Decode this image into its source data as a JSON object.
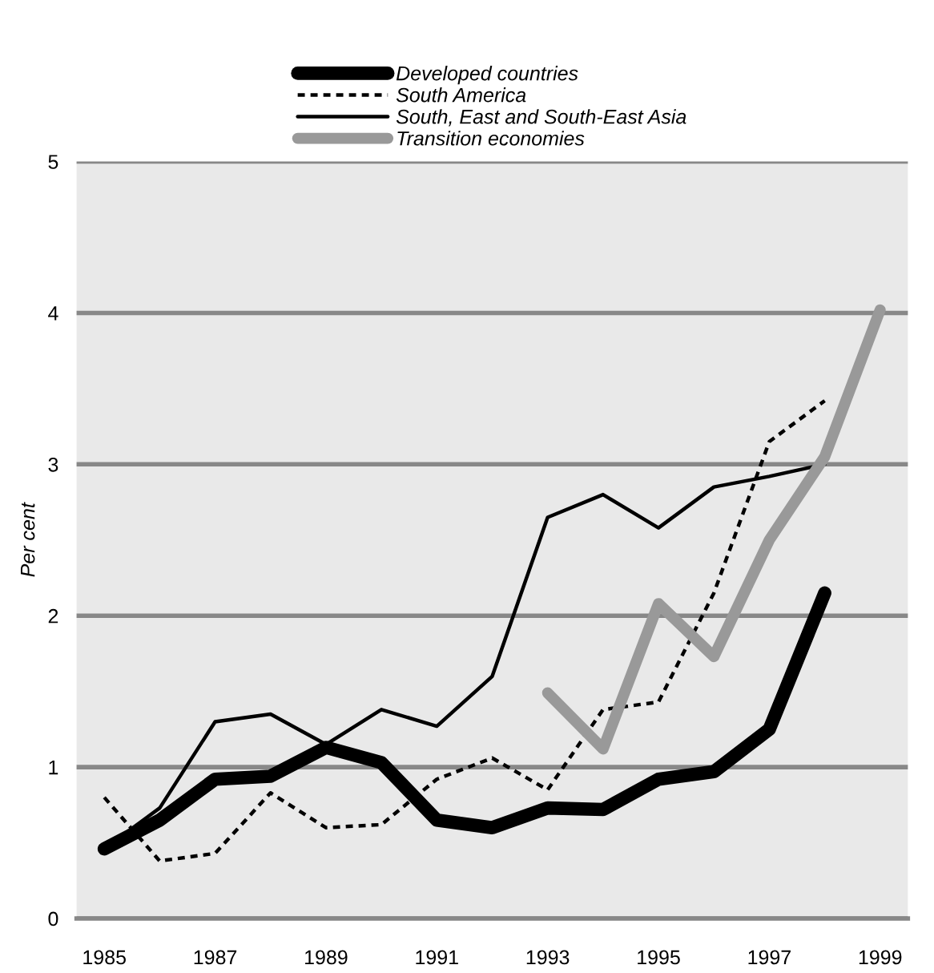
{
  "chart_data": {
    "type": "line",
    "ylabel": "Per cent",
    "x": [
      1985,
      1986,
      1987,
      1988,
      1989,
      1990,
      1991,
      1992,
      1993,
      1994,
      1995,
      1996,
      1997,
      1998,
      1999
    ],
    "series": [
      {
        "name": "Developed countries",
        "color": "#000000",
        "line_style": "solid",
        "values": [
          0.46,
          0.65,
          0.92,
          0.94,
          1.13,
          1.03,
          0.65,
          0.6,
          0.73,
          0.72,
          0.92,
          0.97,
          1.25,
          2.15,
          null
        ]
      },
      {
        "name": "South America",
        "color": "#000000",
        "line_style": "dashed",
        "values": [
          0.8,
          0.38,
          0.43,
          0.83,
          0.6,
          0.62,
          0.92,
          1.06,
          0.85,
          1.38,
          1.43,
          2.15,
          3.15,
          3.42,
          null
        ]
      },
      {
        "name": "South, East and South-East Asia",
        "color": "#000000",
        "line_style": "solid",
        "values": [
          0.46,
          0.73,
          1.3,
          1.35,
          1.15,
          1.38,
          1.27,
          1.6,
          2.65,
          2.8,
          2.58,
          2.85,
          2.92,
          3.0,
          null
        ]
      },
      {
        "name": "Transition economies",
        "color": "#999999",
        "line_style": "solid",
        "values": [
          null,
          null,
          null,
          null,
          null,
          null,
          null,
          null,
          1.49,
          1.12,
          2.08,
          1.73,
          2.5,
          3.05,
          4.02
        ]
      }
    ],
    "xlim": [
      1984.5,
      1999.5
    ],
    "xticks": [
      1985,
      1987,
      1989,
      1991,
      1993,
      1995,
      1997,
      1999
    ],
    "ylim": [
      0,
      5
    ],
    "yticks": [
      0,
      1,
      2,
      3,
      4,
      5
    ],
    "grid": "y",
    "legend": "top",
    "marker": "none"
  }
}
